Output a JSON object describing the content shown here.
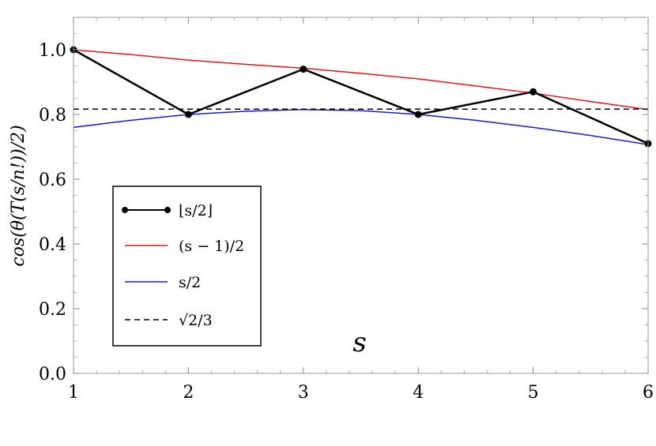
{
  "chart_data": {
    "type": "line",
    "title": "",
    "xlabel": "s",
    "ylabel": "cos(θ(T(s/n!))/2)",
    "xlim": [
      1,
      6
    ],
    "ylim": [
      0,
      1.1
    ],
    "x_ticks": [
      "1",
      "2",
      "3",
      "4",
      "5",
      "6"
    ],
    "y_ticks": [
      "0.0",
      "0.2",
      "0.4",
      "0.6",
      "0.8",
      "1.0"
    ],
    "x_tick_values": [
      1,
      2,
      3,
      4,
      5,
      6
    ],
    "y_tick_values": [
      0,
      0.2,
      0.4,
      0.6,
      0.8,
      1.0
    ],
    "legend_position": "lower-left",
    "series": [
      {
        "name": "⌊s/2⌋",
        "color": "#000000",
        "style": "solid-with-markers",
        "x": [
          1,
          2,
          3,
          4,
          5,
          6
        ],
        "y": [
          1.0,
          0.8,
          0.94,
          0.8,
          0.87,
          0.71
        ]
      },
      {
        "name": "(s − 1)/2",
        "color": "#e8141b",
        "style": "solid",
        "x": [
          1,
          1.5,
          2,
          2.5,
          3,
          3.5,
          4,
          4.5,
          5,
          5.5,
          6
        ],
        "y": [
          1.0,
          0.985,
          0.968,
          0.955,
          0.943,
          0.927,
          0.91,
          0.888,
          0.866,
          0.84,
          0.815
        ]
      },
      {
        "name": "s/2",
        "color": "#1a1ad6",
        "style": "solid",
        "x": [
          1,
          1.5,
          2,
          2.5,
          3,
          3.5,
          4,
          4.5,
          5,
          5.5,
          6
        ],
        "y": [
          0.76,
          0.782,
          0.8,
          0.81,
          0.815,
          0.812,
          0.8,
          0.782,
          0.76,
          0.735,
          0.707
        ]
      },
      {
        "name": "√2/3",
        "color": "#000000",
        "style": "dashed",
        "x": [
          1,
          6
        ],
        "y": [
          0.8165,
          0.8165
        ]
      }
    ]
  }
}
